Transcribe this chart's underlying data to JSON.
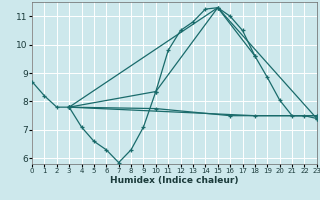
{
  "title": "",
  "xlabel": "Humidex (Indice chaleur)",
  "ylabel": "",
  "background_color": "#cde8ec",
  "grid_color": "#ffffff",
  "line_color": "#1a6b6b",
  "xlim": [
    0,
    23
  ],
  "ylim": [
    5.8,
    11.5
  ],
  "xticks": [
    0,
    1,
    2,
    3,
    4,
    5,
    6,
    7,
    8,
    9,
    10,
    11,
    12,
    13,
    14,
    15,
    16,
    17,
    18,
    19,
    20,
    21,
    22,
    23
  ],
  "yticks": [
    6,
    7,
    8,
    9,
    10,
    11
  ],
  "series": [
    {
      "x": [
        0,
        1,
        2,
        3,
        4,
        5,
        6,
        7,
        8,
        9,
        10,
        11,
        12,
        13,
        14,
        15,
        16,
        17,
        18
      ],
      "y": [
        8.7,
        8.2,
        7.8,
        7.8,
        7.1,
        6.6,
        6.3,
        5.85,
        6.3,
        7.1,
        8.35,
        9.8,
        10.5,
        10.8,
        11.25,
        11.3,
        11.0,
        10.5,
        9.6
      ]
    },
    {
      "comment": "line from x=3 through x=10,15,18,19,20,21,22,23",
      "x": [
        3,
        10,
        15,
        18,
        19,
        20,
        21,
        22,
        23
      ],
      "y": [
        7.8,
        8.35,
        11.3,
        9.6,
        8.85,
        8.05,
        7.5,
        7.5,
        7.4
      ]
    },
    {
      "x": [
        3,
        15,
        23
      ],
      "y": [
        7.8,
        11.3,
        7.4
      ]
    },
    {
      "x": [
        3,
        10,
        16,
        23
      ],
      "y": [
        7.8,
        7.75,
        7.5,
        7.5
      ]
    },
    {
      "x": [
        3,
        18,
        23
      ],
      "y": [
        7.8,
        7.5,
        7.5
      ]
    }
  ]
}
